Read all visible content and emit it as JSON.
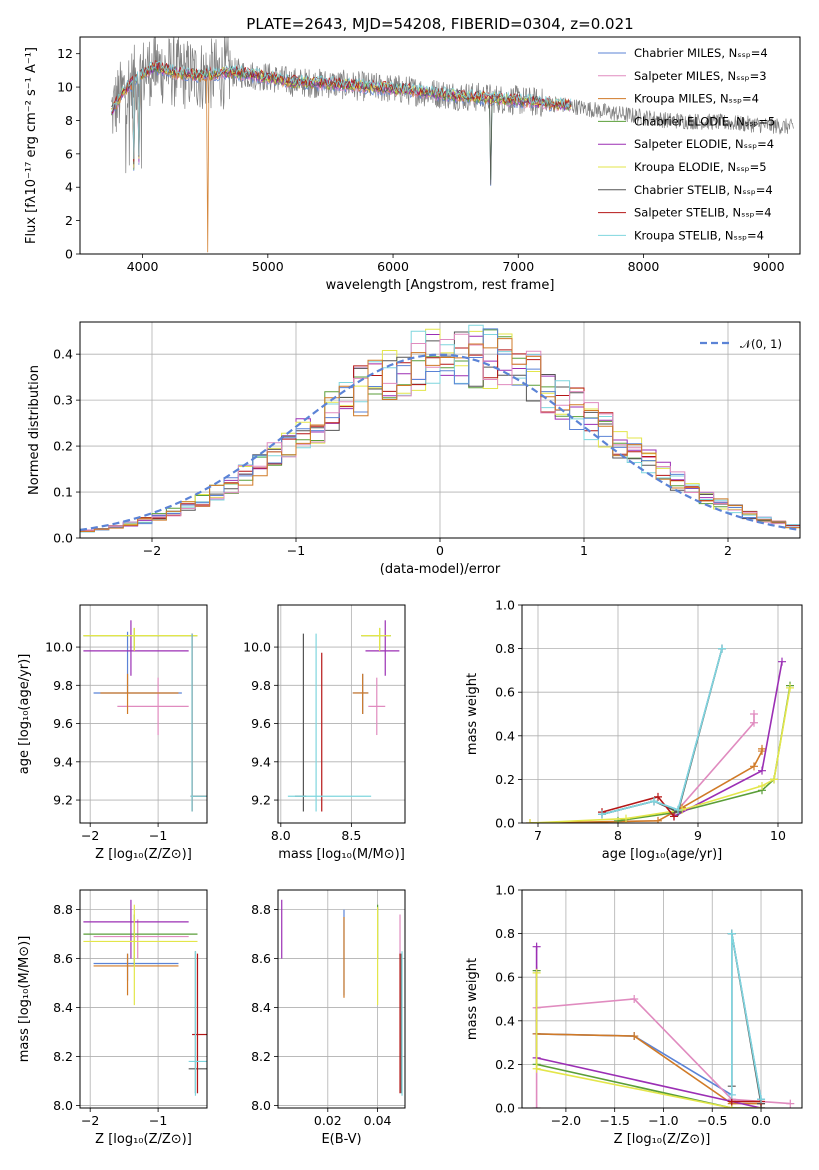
{
  "colors": {
    "Chabrier MILES": "#5b83d6",
    "Salpeter MILES": "#e08bbf",
    "Kroupa MILES": "#d07a27",
    "Chabrier ELODIE": "#5a9e38",
    "Salpeter ELODIE": "#9b2fb4",
    "Kroupa ELODIE": "#e3e64a",
    "Chabrier STELIB": "#555555",
    "Salpeter STELIB": "#b51616",
    "Kroupa STELIB": "#7fd6de",
    "data": "#808080",
    "normal": "#5b83d6"
  },
  "chart_data": [
    {
      "id": "spectrum",
      "type": "line",
      "title": "PLATE=2643, MJD=54208, FIBERID=0304, z=0.021",
      "xlabel": "wavelength [Angstrom, rest frame]",
      "ylabel": "Flux [fλ10⁻¹⁷ erg cm⁻² s⁻¹ A⁻¹]",
      "xlim": [
        3500,
        9250
      ],
      "ylim": [
        0,
        13
      ],
      "xticks": [
        "4000",
        "5000",
        "6000",
        "7000",
        "8000",
        "9000"
      ],
      "yticks": [
        "0",
        "2",
        "4",
        "6",
        "8",
        "10",
        "12"
      ],
      "grid": false,
      "legend_position": "top-right",
      "legend": [
        "Chabrier MILES, Nₛₛₚ=4",
        "Salpeter MILES, Nₛₛₚ=3",
        "Kroupa MILES, Nₛₛₚ=4",
        "Chabrier ELODIE, Nₛₛₚ=5",
        "Salpeter ELODIE, Nₛₛₚ=4",
        "Kroupa ELODIE, Nₛₛₚ=5",
        "Chabrier STELIB, Nₛₛₚ=4",
        "Salpeter STELIB, Nₛₛₚ=4",
        "Kroupa STELIB, Nₛₛₚ=4"
      ],
      "continuum": [
        [
          3750,
          8.5
        ],
        [
          3850,
          9.8
        ],
        [
          4000,
          10.8
        ],
        [
          4100,
          11.2
        ],
        [
          4300,
          10.8
        ],
        [
          4500,
          10.7
        ],
        [
          4700,
          10.9
        ],
        [
          5000,
          10.6
        ],
        [
          5200,
          10.3
        ],
        [
          5500,
          10.2
        ],
        [
          6000,
          9.9
        ],
        [
          6500,
          9.5
        ],
        [
          7000,
          9.2
        ],
        [
          7400,
          8.9
        ],
        [
          7800,
          8.4
        ],
        [
          8200,
          8.0
        ],
        [
          8600,
          7.9
        ],
        [
          9000,
          7.7
        ],
        [
          9200,
          7.6
        ]
      ],
      "model_range": [
        3750,
        7420
      ]
    },
    {
      "id": "residuals",
      "type": "line",
      "xlabel": "(data-model)/error",
      "ylabel": "Normed distribution",
      "xlim": [
        -2.5,
        2.5
      ],
      "ylim": [
        0,
        0.47
      ],
      "xticks": [
        "−2",
        "−1",
        "0",
        "1",
        "2"
      ],
      "yticks": [
        "0.0",
        "0.1",
        "0.2",
        "0.3",
        "0.4"
      ],
      "grid": true,
      "legend": [
        "𝒩(0, 1)"
      ],
      "bin_width": 0.1
    },
    {
      "id": "age_vs_Z",
      "type": "scatter",
      "xlabel": "Z [log₁₀(Z/Z⊙)]",
      "ylabel": "age  [log₁₀(age/yr)]",
      "xlim": [
        -2.15,
        -0.28
      ],
      "ylim": [
        9.08,
        10.22
      ],
      "xticks": [
        "−2",
        "−1"
      ],
      "yticks": [
        "9.2",
        "9.4",
        "9.6",
        "9.8",
        "10.0"
      ],
      "grid": true,
      "points": [
        {
          "name": "Chabrier MILES",
          "x": [
            -1.45,
            -1.95,
            -0.65
          ],
          "y": [
            9.76,
            9.76,
            10.08
          ]
        },
        {
          "name": "Salpeter MILES",
          "x": [
            -1.0,
            -1.6,
            -0.55
          ],
          "y": [
            9.69,
            9.54,
            9.84
          ]
        },
        {
          "name": "Kroupa MILES",
          "x": [
            -1.45,
            -1.85,
            -0.7
          ],
          "y": [
            9.76,
            9.65,
            9.86
          ]
        },
        {
          "name": "Chabrier ELODIE",
          "x": [
            -1.35,
            -2.1,
            -0.42
          ],
          "y": [
            10.06,
            9.98,
            10.1
          ]
        },
        {
          "name": "Salpeter ELODIE",
          "x": [
            -1.4,
            -2.1,
            -0.55
          ],
          "y": [
            9.98,
            9.85,
            10.14
          ]
        },
        {
          "name": "Kroupa ELODIE",
          "x": [
            -1.35,
            -2.1,
            -0.42
          ],
          "y": [
            10.06,
            9.98,
            10.1
          ]
        },
        {
          "name": "Chabrier STELIB",
          "x": [
            -0.5,
            -0.52,
            -0.28
          ],
          "y": [
            9.22,
            9.14,
            10.07
          ]
        },
        {
          "name": "Salpeter STELIB",
          "x": [
            -0.5,
            -0.52,
            -0.28
          ],
          "y": [
            9.22,
            9.14,
            10.07
          ]
        },
        {
          "name": "Kroupa STELIB",
          "x": [
            -0.5,
            -0.52,
            -0.28
          ],
          "y": [
            9.22,
            9.14,
            10.07
          ]
        }
      ]
    },
    {
      "id": "age_vs_mass",
      "type": "scatter",
      "xlabel": "mass [log₁₀(M/M⊙)]",
      "xlim": [
        7.98,
        8.88
      ],
      "ylim": [
        9.08,
        10.22
      ],
      "xticks": [
        "8.0",
        "8.5"
      ],
      "yticks": [
        "9.2",
        "9.4",
        "9.6",
        "9.8",
        "10.0"
      ],
      "grid": true,
      "points": [
        {
          "name": "Chabrier MILES",
          "x": [
            8.58,
            8.51,
            8.62
          ],
          "y": [
            9.76,
            9.65,
            9.86
          ]
        },
        {
          "name": "Salpeter MILES",
          "x": [
            8.68,
            8.62,
            8.74
          ],
          "y": [
            9.69,
            9.54,
            9.84
          ]
        },
        {
          "name": "Kroupa MILES",
          "x": [
            8.58,
            8.51,
            8.62
          ],
          "y": [
            9.76,
            9.65,
            9.86
          ]
        },
        {
          "name": "Chabrier ELODIE",
          "x": [
            8.7,
            8.57,
            8.78
          ],
          "y": [
            10.06,
            9.98,
            10.1
          ]
        },
        {
          "name": "Salpeter ELODIE",
          "x": [
            8.74,
            8.6,
            8.84
          ],
          "y": [
            9.98,
            9.85,
            10.14
          ]
        },
        {
          "name": "Kroupa ELODIE",
          "x": [
            8.7,
            8.57,
            8.78
          ],
          "y": [
            10.06,
            9.98,
            10.1
          ]
        },
        {
          "name": "Chabrier STELIB",
          "x": [
            8.16,
            8.1,
            8.18
          ],
          "y": [
            9.22,
            9.14,
            10.07
          ]
        },
        {
          "name": "Salpeter STELIB",
          "x": [
            8.29,
            8.29,
            8.29
          ],
          "y": [
            9.55,
            9.14,
            9.97
          ]
        },
        {
          "name": "Kroupa STELIB",
          "x": [
            8.25,
            8.05,
            8.64
          ],
          "y": [
            9.22,
            9.14,
            10.07
          ]
        }
      ]
    },
    {
      "id": "massweight_vs_age",
      "type": "line",
      "xlabel": "age  [log₁₀(age/yr)]",
      "ylabel": "mass weight",
      "xlim": [
        6.8,
        10.3
      ],
      "ylim": [
        0,
        1
      ],
      "xticks": [
        "7",
        "8",
        "9",
        "10"
      ],
      "yticks": [
        "0.0",
        "0.2",
        "0.4",
        "0.6",
        "0.8",
        "1.0"
      ],
      "grid": true,
      "series": [
        {
          "name": "Chabrier MILES",
          "x": [
            7.8,
            8.45,
            8.75,
            9.3
          ],
          "y": [
            0.04,
            0.1,
            0.06,
            0.8
          ]
        },
        {
          "name": "Salpeter MILES",
          "x": [
            8.7,
            9.7,
            9.7
          ],
          "y": [
            0.04,
            0.46,
            0.5
          ]
        },
        {
          "name": "Kroupa MILES",
          "x": [
            6.9,
            8.5,
            8.8,
            9.7,
            9.8,
            9.8
          ],
          "y": [
            0.0,
            0.01,
            0.07,
            0.26,
            0.33,
            0.34
          ]
        },
        {
          "name": "Chabrier ELODIE",
          "x": [
            8.0,
            8.75,
            9.8,
            9.95,
            10.15
          ],
          "y": [
            0.01,
            0.05,
            0.15,
            0.2,
            0.63
          ]
        },
        {
          "name": "Salpeter ELODIE",
          "x": [
            8.7,
            9.8,
            10.05
          ],
          "y": [
            0.03,
            0.24,
            0.74
          ]
        },
        {
          "name": "Kroupa ELODIE",
          "x": [
            6.9,
            8.1,
            8.8,
            9.8,
            9.95,
            10.15
          ],
          "y": [
            0.0,
            0.02,
            0.06,
            0.17,
            0.2,
            0.62
          ]
        },
        {
          "name": "Chabrier STELIB",
          "x": [
            7.8,
            8.45,
            8.75,
            9.3
          ],
          "y": [
            0.04,
            0.1,
            0.05,
            0.8
          ]
        },
        {
          "name": "Salpeter STELIB",
          "x": [
            7.8,
            8.5,
            8.7
          ],
          "y": [
            0.05,
            0.12,
            0.03
          ]
        },
        {
          "name": "Kroupa STELIB",
          "x": [
            7.8,
            8.45,
            8.75,
            9.3
          ],
          "y": [
            0.04,
            0.1,
            0.06,
            0.8
          ]
        }
      ]
    },
    {
      "id": "mass_vs_Z",
      "type": "scatter",
      "xlabel": "Z [log₁₀(Z/Z⊙)]",
      "ylabel": "mass [log₁₀(M/M⊙)]",
      "xlim": [
        -2.15,
        -0.28
      ],
      "ylim": [
        7.99,
        8.88
      ],
      "xticks": [
        "−2",
        "−1"
      ],
      "yticks": [
        "8.0",
        "8.2",
        "8.4",
        "8.6",
        "8.8"
      ],
      "grid": true,
      "points": [
        {
          "name": "Chabrier MILES",
          "x": [
            -1.45,
            -1.95,
            -0.7
          ],
          "y": [
            8.58,
            8.51,
            8.62
          ]
        },
        {
          "name": "Salpeter MILES",
          "x": [
            -1.3,
            -1.95,
            -0.55
          ],
          "y": [
            8.69,
            8.6,
            8.76
          ]
        },
        {
          "name": "Kroupa MILES",
          "x": [
            -1.45,
            -1.95,
            -0.7
          ],
          "y": [
            8.57,
            8.45,
            8.62
          ]
        },
        {
          "name": "Chabrier ELODIE",
          "x": [
            -1.35,
            -2.1,
            -0.42
          ],
          "y": [
            8.7,
            8.57,
            8.78
          ]
        },
        {
          "name": "Salpeter ELODIE",
          "x": [
            -1.4,
            -2.1,
            -0.55
          ],
          "y": [
            8.75,
            8.6,
            8.84
          ]
        },
        {
          "name": "Kroupa ELODIE",
          "x": [
            -1.35,
            -2.1,
            -0.42
          ],
          "y": [
            8.67,
            8.41,
            8.82
          ]
        },
        {
          "name": "Chabrier STELIB",
          "x": [
            -0.45,
            -0.55,
            -0.28
          ],
          "y": [
            8.15,
            8.05,
            8.63
          ]
        },
        {
          "name": "Salpeter STELIB",
          "x": [
            -0.42,
            -0.5,
            -0.28
          ],
          "y": [
            8.29,
            8.05,
            8.62
          ]
        },
        {
          "name": "Kroupa STELIB",
          "x": [
            -0.45,
            -0.55,
            -0.28
          ],
          "y": [
            8.18,
            8.04,
            8.63
          ]
        }
      ]
    },
    {
      "id": "mass_vs_EBV",
      "type": "scatter",
      "xlabel": "E(B-V)",
      "xlim": [
        0.0,
        0.051
      ],
      "ylim": [
        7.99,
        8.88
      ],
      "xticks": [
        "0.02",
        "0.04"
      ],
      "yticks": [
        "8.0",
        "8.2",
        "8.4",
        "8.6",
        "8.8"
      ],
      "grid": true,
      "points": [
        {
          "name": "Chabrier MILES",
          "x": [
            0.0265
          ],
          "lo": [
            8.45
          ],
          "hi": [
            8.8
          ]
        },
        {
          "name": "Salpeter MILES",
          "x": [
            0.049
          ],
          "lo": [
            8.61
          ],
          "hi": [
            8.78
          ]
        },
        {
          "name": "Kroupa MILES",
          "x": [
            0.0265
          ],
          "lo": [
            8.44
          ],
          "hi": [
            8.77
          ]
        },
        {
          "name": "Chabrier ELODIE",
          "x": [
            0.04
          ],
          "lo": [
            8.6
          ],
          "hi": [
            8.82
          ]
        },
        {
          "name": "Salpeter ELODIE",
          "x": [
            0.0015
          ],
          "lo": [
            8.6
          ],
          "hi": [
            8.84
          ]
        },
        {
          "name": "Kroupa ELODIE",
          "x": [
            0.04
          ],
          "lo": [
            8.41
          ],
          "hi": [
            8.81
          ]
        },
        {
          "name": "Chabrier STELIB",
          "x": [
            0.0495
          ],
          "lo": [
            8.05
          ],
          "hi": [
            8.62
          ]
        },
        {
          "name": "Salpeter STELIB",
          "x": [
            0.049
          ],
          "lo": [
            8.05
          ],
          "hi": [
            8.62
          ]
        },
        {
          "name": "Kroupa STELIB",
          "x": [
            0.0498
          ],
          "lo": [
            8.04
          ],
          "hi": [
            8.63
          ]
        }
      ]
    },
    {
      "id": "massweight_vs_Z",
      "type": "line",
      "xlabel": "Z [log₁₀(Z/Z⊙)]",
      "ylabel": "mass weight",
      "xlim": [
        -2.45,
        0.42
      ],
      "ylim": [
        0,
        1
      ],
      "xticks": [
        "−2.0",
        "−1.5",
        "−1.0",
        "−0.5",
        "0.0"
      ],
      "yticks": [
        "0.0",
        "0.2",
        "0.4",
        "0.6",
        "0.8",
        "1.0"
      ],
      "grid": true,
      "series": [
        {
          "name": "Chabrier MILES",
          "x": [
            -2.3,
            -1.3,
            -0.3,
            -0.3,
            0.0,
            0.0
          ],
          "y": [
            0.34,
            0.33,
            0.06,
            0.8,
            0.04,
            0.0
          ]
        },
        {
          "name": "Salpeter MILES",
          "x": [
            -2.3,
            -2.3,
            -1.3,
            -0.3,
            0.3
          ],
          "y": [
            0.0,
            0.46,
            0.5,
            0.04,
            0.02
          ]
        },
        {
          "name": "Kroupa MILES",
          "x": [
            -2.3,
            -1.3,
            -0.3,
            0.0
          ],
          "y": [
            0.34,
            0.33,
            0.02,
            0.02
          ]
        },
        {
          "name": "Chabrier ELODIE",
          "x": [
            -2.3,
            -2.3,
            -0.3,
            0.0
          ],
          "y": [
            0.63,
            0.2,
            0.0,
            0.0
          ]
        },
        {
          "name": "Salpeter ELODIE",
          "x": [
            -2.3,
            -2.3,
            -0.3,
            0.0
          ],
          "y": [
            0.74,
            0.23,
            0.03,
            0.0
          ]
        },
        {
          "name": "Kroupa ELODIE",
          "x": [
            -2.3,
            -2.3,
            -0.3,
            0.0
          ],
          "y": [
            0.62,
            0.18,
            0.0,
            0.0
          ]
        },
        {
          "name": "Chabrier STELIB",
          "x": [
            -0.3,
            -0.3,
            0.0
          ],
          "y": [
            0.1,
            0.8,
            0.02
          ]
        },
        {
          "name": "Salpeter STELIB",
          "x": [
            -0.3,
            0.0
          ],
          "y": [
            0.03,
            0.03
          ]
        },
        {
          "name": "Kroupa STELIB",
          "x": [
            -0.3,
            -0.3,
            0.0
          ],
          "y": [
            0.06,
            0.8,
            0.04
          ]
        }
      ]
    }
  ]
}
